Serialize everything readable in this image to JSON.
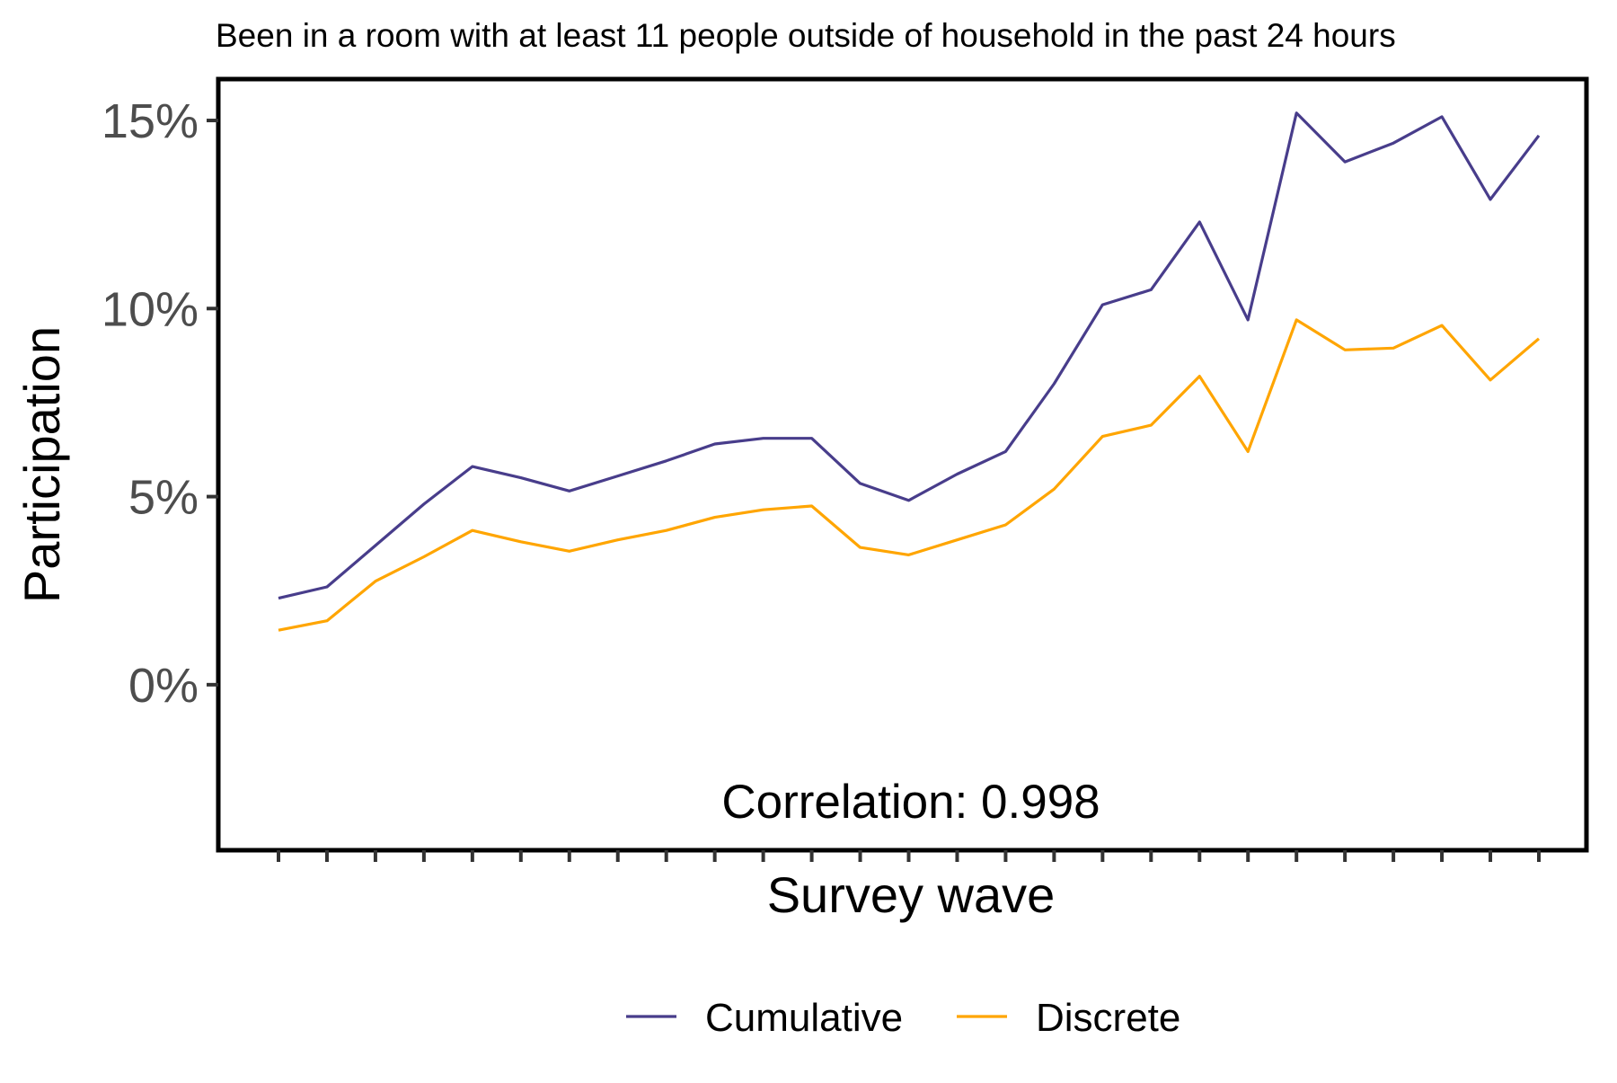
{
  "chart_data": {
    "type": "line",
    "title": "Been in a room with at least 11 people outside of household in the past 24 hours",
    "xlabel": "Survey wave",
    "ylabel": "Participation",
    "x": [
      1,
      2,
      3,
      4,
      5,
      6,
      7,
      8,
      9,
      10,
      11,
      12,
      13,
      14,
      15,
      16,
      17,
      18,
      19,
      20,
      21,
      22,
      23,
      24,
      25,
      26,
      27
    ],
    "ylim": [
      -4.4,
      16.1
    ],
    "yticks": [
      0,
      5,
      10,
      15
    ],
    "ytick_labels": [
      "0%",
      "5%",
      "10%",
      "15%"
    ],
    "grid": false,
    "legend_position": "bottom",
    "annotation": "Correlation: 0.998",
    "series": [
      {
        "name": "Cumulative",
        "color": "#483d8b",
        "values": [
          2.3,
          2.6,
          3.7,
          4.8,
          5.8,
          5.5,
          5.15,
          5.55,
          5.95,
          6.4,
          6.55,
          6.55,
          5.35,
          4.9,
          5.6,
          6.2,
          8.0,
          10.1,
          10.5,
          12.3,
          9.7,
          15.2,
          13.9,
          14.4,
          15.1,
          12.9,
          14.6
        ]
      },
      {
        "name": "Discrete",
        "color": "#ffa500",
        "values": [
          1.45,
          1.7,
          2.75,
          3.4,
          4.1,
          3.8,
          3.55,
          3.85,
          4.1,
          4.45,
          4.65,
          4.75,
          3.65,
          3.45,
          3.85,
          4.25,
          5.2,
          6.6,
          6.9,
          8.2,
          6.2,
          9.7,
          8.9,
          8.95,
          9.55,
          8.1,
          9.2
        ]
      }
    ]
  }
}
